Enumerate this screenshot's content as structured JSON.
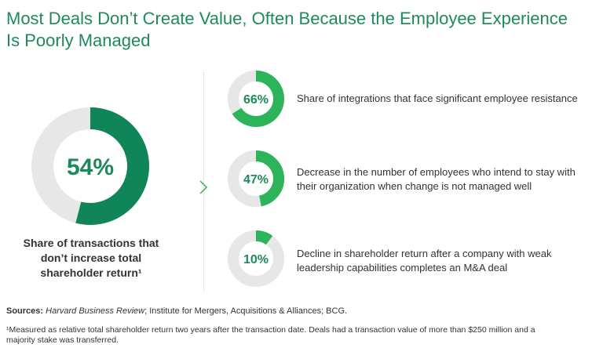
{
  "title_lines": [
    "Most Deals Don’t Create Value, Often Because the Employee Experience",
    "Is Poorly Managed"
  ],
  "colors": {
    "title": "#1e8a5c",
    "dark_green": "#108557",
    "bright_green": "#2db35a",
    "track": "#e7e7e7",
    "text": "#333333"
  },
  "chart_data": {
    "type": "donut",
    "items": [
      {
        "value": 54,
        "label": "54%",
        "caption_lines": [
          "Share of transactions that",
          "don’t increase total",
          "shareholder return¹"
        ]
      },
      {
        "value": 66,
        "label": "66%",
        "caption_lines": [
          "Share of integrations that face significant employee resistance"
        ]
      },
      {
        "value": 47,
        "label": "47%",
        "caption_lines": [
          "Decrease in the number of employees who intend to stay with",
          "their organization when change is not managed well"
        ]
      },
      {
        "value": 10,
        "label": "10%",
        "caption_lines": [
          "Decline in shareholder return after a company with weak",
          "leadership capabilities completes an M&A deal"
        ]
      }
    ]
  },
  "sources": {
    "label": "Sources:",
    "italic": "Harvard Business Review",
    "rest": "; Institute for Mergers, Acquisitions & Alliances; BCG."
  },
  "footnote_lines": [
    "¹Measured as relative total shareholder return two years after the transaction date. Deals had a transaction value of more than $250 million and a",
    "majority stake was transferred."
  ]
}
